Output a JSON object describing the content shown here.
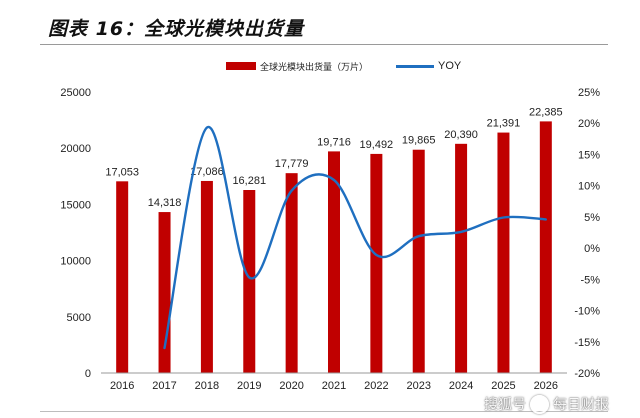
{
  "figure": {
    "title": "图表 16：全球光模块出货量"
  },
  "legend": {
    "bar_label": "全球光模块出货量（万片）",
    "line_label": "YOY"
  },
  "watermark": {
    "left_text": "搜狐号",
    "right_text": "每日财报"
  },
  "colors": {
    "bar": "#c00000",
    "line": "#1f6fc0",
    "axis_text": "#222222"
  },
  "chart_data": {
    "type": "bar+line",
    "categories": [
      "2016",
      "2017",
      "2018",
      "2019",
      "2020",
      "2021",
      "2022",
      "2023",
      "2024",
      "2025",
      "2026"
    ],
    "series": [
      {
        "name": "全球光模块出货量（万片）",
        "type": "bar",
        "axis": "left",
        "values": [
          17053,
          14318,
          17086,
          16281,
          17779,
          19716,
          19492,
          19865,
          20390,
          21391,
          22385
        ],
        "labels": [
          "17,053",
          "14,318",
          "17,086",
          "16,281",
          "17,779",
          "19,716",
          "19,492",
          "19,865",
          "20,390",
          "21,391",
          "22,385"
        ]
      },
      {
        "name": "YOY",
        "type": "line",
        "axis": "right",
        "values": [
          null,
          -16.0,
          19.3,
          -4.7,
          9.2,
          10.9,
          -1.1,
          1.9,
          2.6,
          4.9,
          4.6
        ]
      }
    ],
    "y_left": {
      "min": 0,
      "max": 25000,
      "ticks": [
        "0",
        "5000",
        "10000",
        "15000",
        "20000",
        "25000"
      ]
    },
    "y_right": {
      "min": -20,
      "max": 25,
      "ticks": [
        "-20%",
        "-15%",
        "-10%",
        "-5%",
        "0%",
        "5%",
        "10%",
        "15%",
        "20%",
        "25%"
      ]
    },
    "grid": false,
    "legend_position": "top-center"
  }
}
